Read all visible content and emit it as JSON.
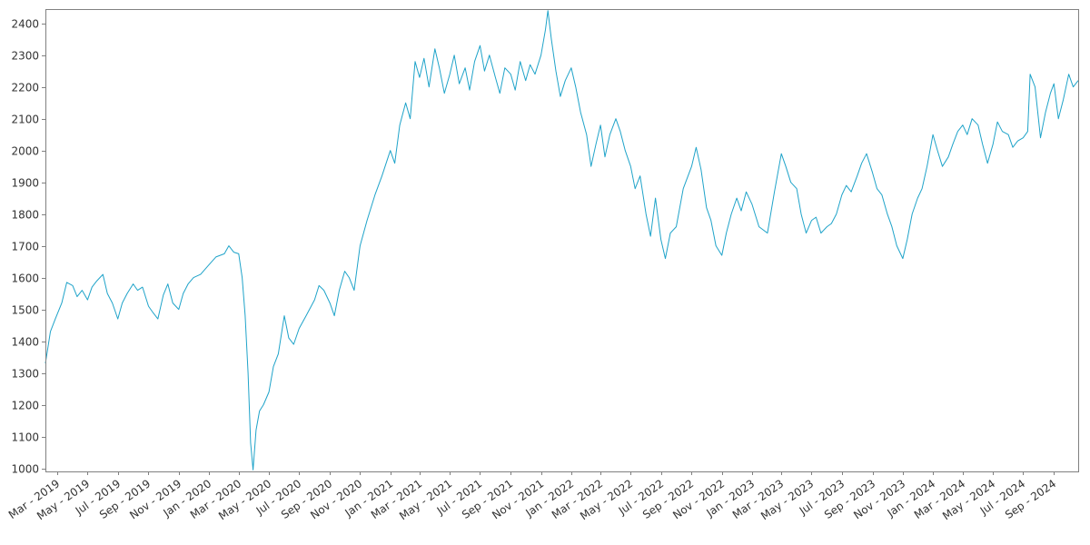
{
  "colors": {
    "series": "#1fa3c9",
    "axis": "#808080",
    "text": "#333333"
  },
  "chart_data": {
    "type": "line",
    "title": "",
    "xlabel": "",
    "ylabel": "",
    "grid": false,
    "legend": "none",
    "xlim": [
      "2019-02-05",
      "2024-10-20"
    ],
    "ylim": [
      990,
      2445
    ],
    "y_ticks": [
      1000,
      1100,
      1200,
      1300,
      1400,
      1500,
      1600,
      1700,
      1800,
      1900,
      2000,
      2100,
      2200,
      2300,
      2400
    ],
    "x_ticks": [
      {
        "date": "2019-03-01",
        "label": "Mar - 2019"
      },
      {
        "date": "2019-05-01",
        "label": "May - 2019"
      },
      {
        "date": "2019-07-01",
        "label": "Jul - 2019"
      },
      {
        "date": "2019-09-01",
        "label": "Sep - 2019"
      },
      {
        "date": "2019-11-01",
        "label": "Nov - 2019"
      },
      {
        "date": "2020-01-01",
        "label": "Jan - 2020"
      },
      {
        "date": "2020-03-01",
        "label": "Mar - 2020"
      },
      {
        "date": "2020-05-01",
        "label": "May - 2020"
      },
      {
        "date": "2020-07-01",
        "label": "Jul - 2020"
      },
      {
        "date": "2020-09-01",
        "label": "Sep - 2020"
      },
      {
        "date": "2020-11-01",
        "label": "Nov - 2020"
      },
      {
        "date": "2021-01-01",
        "label": "Jan - 2021"
      },
      {
        "date": "2021-03-01",
        "label": "Mar - 2021"
      },
      {
        "date": "2021-05-01",
        "label": "May - 2021"
      },
      {
        "date": "2021-07-01",
        "label": "Jul - 2021"
      },
      {
        "date": "2021-09-01",
        "label": "Sep - 2021"
      },
      {
        "date": "2021-11-01",
        "label": "Nov - 2021"
      },
      {
        "date": "2022-01-01",
        "label": "Jan - 2022"
      },
      {
        "date": "2022-03-01",
        "label": "Mar - 2022"
      },
      {
        "date": "2022-05-01",
        "label": "May - 2022"
      },
      {
        "date": "2022-07-01",
        "label": "Jul - 2022"
      },
      {
        "date": "2022-09-01",
        "label": "Sep - 2022"
      },
      {
        "date": "2022-11-01",
        "label": "Nov - 2022"
      },
      {
        "date": "2023-01-01",
        "label": "Jan - 2023"
      },
      {
        "date": "2023-03-01",
        "label": "Mar - 2023"
      },
      {
        "date": "2023-05-01",
        "label": "May - 2023"
      },
      {
        "date": "2023-07-01",
        "label": "Jul - 2023"
      },
      {
        "date": "2023-09-01",
        "label": "Sep - 2023"
      },
      {
        "date": "2023-11-01",
        "label": "Nov - 2023"
      },
      {
        "date": "2024-01-01",
        "label": "Jan - 2024"
      },
      {
        "date": "2024-03-01",
        "label": "Mar - 2024"
      },
      {
        "date": "2024-05-01",
        "label": "May - 2024"
      },
      {
        "date": "2024-07-01",
        "label": "Jul - 2024"
      },
      {
        "date": "2024-09-01",
        "label": "Sep - 2024"
      }
    ],
    "series": [
      {
        "points": [
          [
            "2019-02-05",
            1330
          ],
          [
            "2019-02-15",
            1430
          ],
          [
            "2019-02-25",
            1470
          ],
          [
            "2019-03-10",
            1520
          ],
          [
            "2019-03-20",
            1585
          ],
          [
            "2019-04-01",
            1575
          ],
          [
            "2019-04-10",
            1540
          ],
          [
            "2019-04-20",
            1560
          ],
          [
            "2019-05-01",
            1530
          ],
          [
            "2019-05-10",
            1570
          ],
          [
            "2019-05-20",
            1590
          ],
          [
            "2019-06-01",
            1610
          ],
          [
            "2019-06-10",
            1550
          ],
          [
            "2019-06-20",
            1520
          ],
          [
            "2019-07-01",
            1470
          ],
          [
            "2019-07-10",
            1520
          ],
          [
            "2019-07-20",
            1550
          ],
          [
            "2019-08-01",
            1580
          ],
          [
            "2019-08-10",
            1560
          ],
          [
            "2019-08-20",
            1570
          ],
          [
            "2019-09-01",
            1510
          ],
          [
            "2019-09-10",
            1490
          ],
          [
            "2019-09-20",
            1470
          ],
          [
            "2019-10-01",
            1545
          ],
          [
            "2019-10-10",
            1580
          ],
          [
            "2019-10-20",
            1520
          ],
          [
            "2019-11-01",
            1500
          ],
          [
            "2019-11-10",
            1550
          ],
          [
            "2019-11-20",
            1580
          ],
          [
            "2019-12-01",
            1600
          ],
          [
            "2019-12-15",
            1610
          ],
          [
            "2020-01-01",
            1640
          ],
          [
            "2020-01-15",
            1665
          ],
          [
            "2020-02-01",
            1675
          ],
          [
            "2020-02-10",
            1700
          ],
          [
            "2020-02-20",
            1680
          ],
          [
            "2020-03-01",
            1675
          ],
          [
            "2020-03-08",
            1600
          ],
          [
            "2020-03-14",
            1480
          ],
          [
            "2020-03-20",
            1300
          ],
          [
            "2020-03-25",
            1080
          ],
          [
            "2020-03-30",
            995
          ],
          [
            "2020-04-05",
            1120
          ],
          [
            "2020-04-12",
            1180
          ],
          [
            "2020-04-20",
            1200
          ],
          [
            "2020-05-01",
            1240
          ],
          [
            "2020-05-10",
            1320
          ],
          [
            "2020-05-20",
            1360
          ],
          [
            "2020-06-01",
            1480
          ],
          [
            "2020-06-10",
            1410
          ],
          [
            "2020-06-20",
            1390
          ],
          [
            "2020-07-01",
            1440
          ],
          [
            "2020-07-15",
            1480
          ],
          [
            "2020-08-01",
            1530
          ],
          [
            "2020-08-10",
            1575
          ],
          [
            "2020-08-20",
            1560
          ],
          [
            "2020-09-01",
            1520
          ],
          [
            "2020-09-10",
            1480
          ],
          [
            "2020-09-20",
            1560
          ],
          [
            "2020-10-01",
            1620
          ],
          [
            "2020-10-10",
            1600
          ],
          [
            "2020-10-20",
            1560
          ],
          [
            "2020-11-01",
            1700
          ],
          [
            "2020-11-15",
            1780
          ],
          [
            "2020-12-01",
            1860
          ],
          [
            "2020-12-15",
            1920
          ],
          [
            "2021-01-01",
            2000
          ],
          [
            "2021-01-10",
            1960
          ],
          [
            "2021-01-20",
            2080
          ],
          [
            "2021-02-01",
            2150
          ],
          [
            "2021-02-10",
            2100
          ],
          [
            "2021-02-20",
            2280
          ],
          [
            "2021-03-01",
            2230
          ],
          [
            "2021-03-10",
            2290
          ],
          [
            "2021-03-20",
            2200
          ],
          [
            "2021-04-01",
            2320
          ],
          [
            "2021-04-10",
            2260
          ],
          [
            "2021-04-20",
            2180
          ],
          [
            "2021-05-01",
            2240
          ],
          [
            "2021-05-10",
            2300
          ],
          [
            "2021-05-20",
            2210
          ],
          [
            "2021-06-01",
            2260
          ],
          [
            "2021-06-10",
            2190
          ],
          [
            "2021-06-20",
            2280
          ],
          [
            "2021-07-01",
            2330
          ],
          [
            "2021-07-10",
            2250
          ],
          [
            "2021-07-20",
            2300
          ],
          [
            "2021-08-01",
            2230
          ],
          [
            "2021-08-10",
            2180
          ],
          [
            "2021-08-20",
            2260
          ],
          [
            "2021-09-01",
            2240
          ],
          [
            "2021-09-10",
            2190
          ],
          [
            "2021-09-20",
            2280
          ],
          [
            "2021-10-01",
            2220
          ],
          [
            "2021-10-10",
            2270
          ],
          [
            "2021-10-20",
            2240
          ],
          [
            "2021-11-01",
            2300
          ],
          [
            "2021-11-10",
            2380
          ],
          [
            "2021-11-15",
            2440
          ],
          [
            "2021-11-22",
            2350
          ],
          [
            "2021-12-01",
            2250
          ],
          [
            "2021-12-10",
            2170
          ],
          [
            "2021-12-20",
            2220
          ],
          [
            "2022-01-01",
            2260
          ],
          [
            "2022-01-10",
            2200
          ],
          [
            "2022-01-20",
            2120
          ],
          [
            "2022-02-01",
            2050
          ],
          [
            "2022-02-10",
            1950
          ],
          [
            "2022-02-20",
            2020
          ],
          [
            "2022-03-01",
            2080
          ],
          [
            "2022-03-10",
            1980
          ],
          [
            "2022-03-20",
            2050
          ],
          [
            "2022-04-01",
            2100
          ],
          [
            "2022-04-10",
            2060
          ],
          [
            "2022-04-20",
            2000
          ],
          [
            "2022-05-01",
            1950
          ],
          [
            "2022-05-10",
            1880
          ],
          [
            "2022-05-20",
            1920
          ],
          [
            "2022-06-01",
            1800
          ],
          [
            "2022-06-10",
            1730
          ],
          [
            "2022-06-20",
            1850
          ],
          [
            "2022-07-01",
            1720
          ],
          [
            "2022-07-10",
            1660
          ],
          [
            "2022-07-20",
            1740
          ],
          [
            "2022-08-01",
            1760
          ],
          [
            "2022-08-15",
            1880
          ],
          [
            "2022-09-01",
            1950
          ],
          [
            "2022-09-10",
            2010
          ],
          [
            "2022-09-20",
            1940
          ],
          [
            "2022-10-01",
            1820
          ],
          [
            "2022-10-10",
            1780
          ],
          [
            "2022-10-20",
            1700
          ],
          [
            "2022-11-01",
            1670
          ],
          [
            "2022-11-10",
            1740
          ],
          [
            "2022-11-20",
            1800
          ],
          [
            "2022-12-01",
            1850
          ],
          [
            "2022-12-10",
            1810
          ],
          [
            "2022-12-20",
            1870
          ],
          [
            "2023-01-01",
            1830
          ],
          [
            "2023-01-15",
            1760
          ],
          [
            "2023-02-01",
            1740
          ],
          [
            "2023-02-15",
            1870
          ],
          [
            "2023-03-01",
            1990
          ],
          [
            "2023-03-10",
            1950
          ],
          [
            "2023-03-20",
            1900
          ],
          [
            "2023-04-01",
            1880
          ],
          [
            "2023-04-10",
            1800
          ],
          [
            "2023-04-20",
            1740
          ],
          [
            "2023-05-01",
            1780
          ],
          [
            "2023-05-10",
            1790
          ],
          [
            "2023-05-20",
            1740
          ],
          [
            "2023-06-01",
            1760
          ],
          [
            "2023-06-10",
            1770
          ],
          [
            "2023-06-20",
            1800
          ],
          [
            "2023-07-01",
            1860
          ],
          [
            "2023-07-10",
            1890
          ],
          [
            "2023-07-20",
            1870
          ],
          [
            "2023-08-01",
            1920
          ],
          [
            "2023-08-10",
            1960
          ],
          [
            "2023-08-20",
            1990
          ],
          [
            "2023-09-01",
            1930
          ],
          [
            "2023-09-10",
            1880
          ],
          [
            "2023-09-20",
            1860
          ],
          [
            "2023-10-01",
            1800
          ],
          [
            "2023-10-10",
            1760
          ],
          [
            "2023-10-20",
            1700
          ],
          [
            "2023-11-01",
            1660
          ],
          [
            "2023-11-10",
            1720
          ],
          [
            "2023-11-20",
            1800
          ],
          [
            "2023-12-01",
            1850
          ],
          [
            "2023-12-10",
            1880
          ],
          [
            "2023-12-20",
            1950
          ],
          [
            "2024-01-01",
            2050
          ],
          [
            "2024-01-10",
            2000
          ],
          [
            "2024-01-20",
            1950
          ],
          [
            "2024-02-01",
            1980
          ],
          [
            "2024-02-10",
            2020
          ],
          [
            "2024-02-20",
            2060
          ],
          [
            "2024-03-01",
            2080
          ],
          [
            "2024-03-10",
            2050
          ],
          [
            "2024-03-20",
            2100
          ],
          [
            "2024-04-01",
            2080
          ],
          [
            "2024-04-10",
            2020
          ],
          [
            "2024-04-20",
            1960
          ],
          [
            "2024-05-01",
            2020
          ],
          [
            "2024-05-10",
            2090
          ],
          [
            "2024-05-20",
            2060
          ],
          [
            "2024-06-01",
            2050
          ],
          [
            "2024-06-10",
            2010
          ],
          [
            "2024-06-20",
            2030
          ],
          [
            "2024-07-01",
            2040
          ],
          [
            "2024-07-10",
            2060
          ],
          [
            "2024-07-15",
            2240
          ],
          [
            "2024-07-25",
            2200
          ],
          [
            "2024-08-05",
            2040
          ],
          [
            "2024-08-15",
            2120
          ],
          [
            "2024-08-25",
            2180
          ],
          [
            "2024-09-01",
            2210
          ],
          [
            "2024-09-10",
            2100
          ],
          [
            "2024-09-20",
            2160
          ],
          [
            "2024-10-01",
            2240
          ],
          [
            "2024-10-10",
            2200
          ],
          [
            "2024-10-20",
            2220
          ]
        ]
      }
    ]
  }
}
